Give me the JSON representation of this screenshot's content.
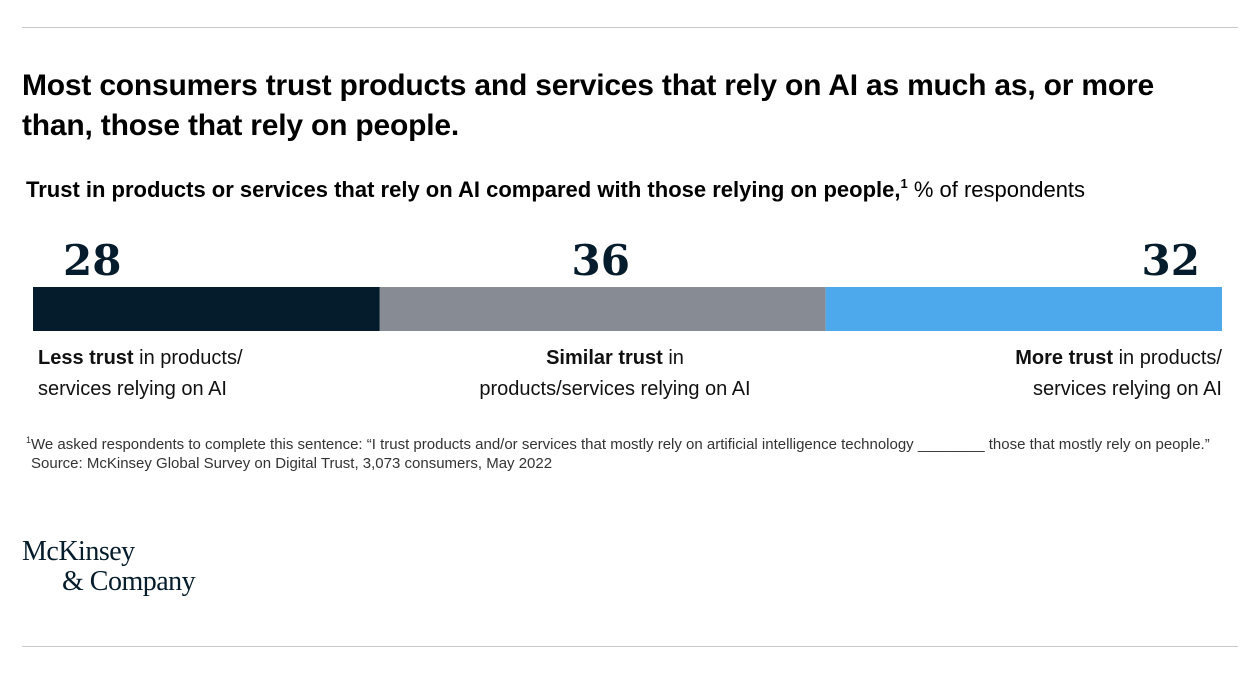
{
  "title": "Most consumers trust products and services that rely on AI as much as, or more than, those that rely on people.",
  "subtitle": {
    "bold": "Trust in products or services that rely on AI compared with those relying on people,",
    "footnote_mark": "1",
    "regular": " % of respondents"
  },
  "categories": [
    {
      "bold": "Less trust",
      "rest_line1": " in products/",
      "line2": "services relying on AI"
    },
    {
      "bold": "Similar trust",
      "rest_line1": " in",
      "line2": "products/services relying on AI"
    },
    {
      "bold": "More trust",
      "rest_line1": " in products/",
      "line2": "services relying on AI"
    }
  ],
  "chart_data": {
    "type": "bar",
    "orientation": "horizontal-stacked",
    "categories": [
      "Less trust",
      "Similar trust",
      "More trust"
    ],
    "values": [
      28,
      36,
      32
    ],
    "unit": "% of respondents",
    "colors": [
      "#051c2c",
      "#878c94",
      "#4ea8ec"
    ]
  },
  "notes": {
    "footnote_mark": "1",
    "footnote": "We asked respondents to complete this sentence: “I trust products and/or services that mostly rely on artificial intelligence technology ________ those that mostly rely on people.”",
    "source": "Source: McKinsey Global Survey on Digital Trust, 3,073 consumers, May 2022"
  },
  "logo": {
    "line1": "McKinsey",
    "line2": "& Company"
  }
}
